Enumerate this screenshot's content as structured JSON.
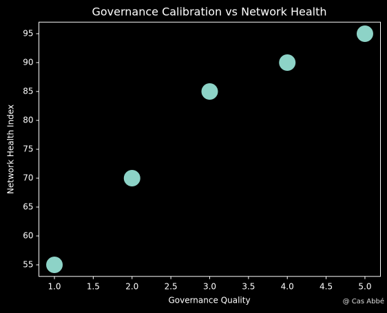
{
  "chart_data": {
    "type": "scatter",
    "title": "Governance Calibration vs Network Health",
    "x_label": "Governance Quality",
    "y_label": "Network Health Index",
    "x": [
      1,
      2,
      3,
      4,
      5
    ],
    "values": [
      55,
      70,
      85,
      90,
      95
    ],
    "color": "#8dd3c7",
    "xlim": [
      0.8,
      5.2
    ],
    "ylim": [
      53,
      97
    ],
    "xticks": [
      {
        "value": 1,
        "label": "1.0"
      },
      {
        "value": 1.5,
        "label": "1.5"
      },
      {
        "value": 2,
        "label": "2.0"
      },
      {
        "value": 2.5,
        "label": "2.5"
      },
      {
        "value": 3,
        "label": "3.0"
      },
      {
        "value": 3.5,
        "label": "3.5"
      },
      {
        "value": 4,
        "label": "4.0"
      },
      {
        "value": 4.5,
        "label": "4.5"
      },
      {
        "value": 5,
        "label": "5.0"
      }
    ],
    "yticks": [
      55,
      60,
      65,
      70,
      75,
      80,
      85,
      90,
      95
    ],
    "grid": false,
    "watermark": "@ Cas Abbé"
  }
}
